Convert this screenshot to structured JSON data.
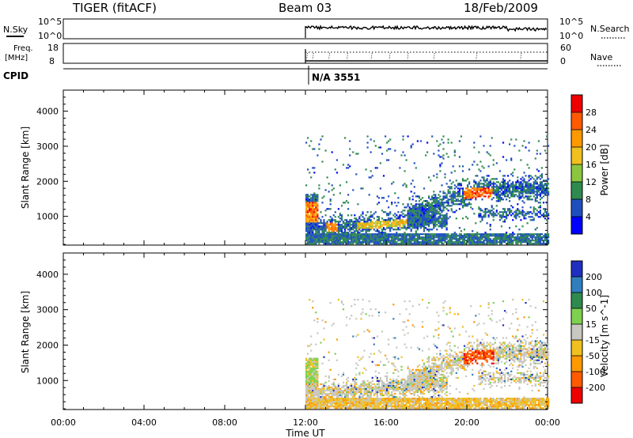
{
  "header": {
    "station": "TIGER (fitACF)",
    "beam": "Beam 03",
    "date": "18/Feb/2009"
  },
  "top_panels": {
    "nsky_label": "N.Sky",
    "nsearch_label": "N.Search",
    "left_ticks_top": "10^5",
    "left_ticks_bottom": "10^0",
    "right_ticks_top": "10^5",
    "right_ticks_bottom": "10^0",
    "freq_label_line1": "Freq.",
    "freq_label_line2": "[MHz]",
    "freq_tick_top": "18",
    "freq_tick_bottom": "8",
    "nave_label": "Nave",
    "nave_tick_top": "60",
    "nave_tick_bottom": "0",
    "cpid_label": "CPID",
    "cpid_value": "N/A 3551"
  },
  "chart_data": [
    {
      "type": "heatmap",
      "name": "power",
      "xlabel": "Time UT",
      "ylabel": "Slant Range [km]",
      "x_ticks": [
        "00:00",
        "04:00",
        "08:00",
        "12:00",
        "16:00",
        "20:00",
        "00:00"
      ],
      "xlim_hours": [
        0,
        24
      ],
      "y_ticks": [
        "1000",
        "2000",
        "3000",
        "4000"
      ],
      "ylim": [
        180,
        4600
      ],
      "colorbar_label": "Power [dB]",
      "colorbar_ticks": [
        "4",
        "8",
        "12",
        "16",
        "20",
        "24",
        "28"
      ],
      "colorbar_range": [
        0,
        32
      ],
      "colors": [
        "#0000ff",
        "#1f4fbf",
        "#2f8a4f",
        "#8cc63f",
        "#f0c020",
        "#ff9900",
        "#ff5a00",
        "#ee0000"
      ],
      "data_start_hour": 12
    },
    {
      "type": "heatmap",
      "name": "velocity",
      "xlabel": "Time UT",
      "ylabel": "Slant Range [km]",
      "x_ticks": [
        "00:00",
        "04:00",
        "08:00",
        "12:00",
        "16:00",
        "20:00",
        "00:00"
      ],
      "xlim_hours": [
        0,
        24
      ],
      "y_ticks": [
        "1000",
        "2000",
        "3000",
        "4000"
      ],
      "ylim": [
        180,
        4600
      ],
      "colorbar_label": "Velocity [m s^-1]",
      "colorbar_ticks": [
        "200",
        "100",
        "50",
        "15",
        "-15",
        "-50",
        "-100",
        "-200"
      ],
      "colors": [
        "#1f2fbf",
        "#2f7fbf",
        "#2f8a4f",
        "#7fd04f",
        "#c8c8c0",
        "#f0c020",
        "#ff9900",
        "#ff5a00",
        "#ee0000"
      ],
      "data_start_hour": 12
    }
  ]
}
